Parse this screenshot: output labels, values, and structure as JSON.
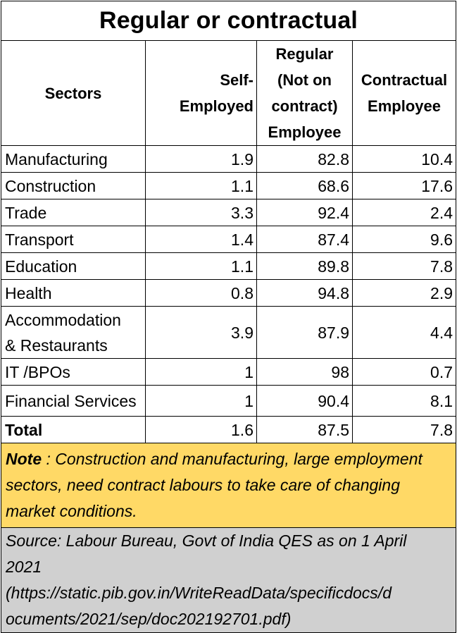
{
  "title": "Regular or contractual",
  "headers": {
    "sectors": "Sectors",
    "self_employed": [
      "Self-",
      "Employed"
    ],
    "regular": [
      "Regular",
      "(Not on",
      "contract)",
      "Employee"
    ],
    "contractual": [
      "Contractual",
      "Employee"
    ]
  },
  "rows": [
    {
      "sector": [
        "Manufacturing"
      ],
      "self_employed": "1.9",
      "regular": "82.8",
      "contractual": "10.4"
    },
    {
      "sector": [
        "Construction"
      ],
      "self_employed": "1.1",
      "regular": "68.6",
      "contractual": "17.6"
    },
    {
      "sector": [
        "Trade"
      ],
      "self_employed": "3.3",
      "regular": "92.4",
      "contractual": "2.4"
    },
    {
      "sector": [
        "Transport"
      ],
      "self_employed": "1.4",
      "regular": "87.4",
      "contractual": "9.6"
    },
    {
      "sector": [
        "Education"
      ],
      "self_employed": "1.1",
      "regular": "89.8",
      "contractual": "7.8"
    },
    {
      "sector": [
        "Health"
      ],
      "self_employed": "0.8",
      "regular": "94.8",
      "contractual": "2.9"
    },
    {
      "sector": [
        "Accommodation",
        "& Restaurants"
      ],
      "self_employed": "3.9",
      "regular": "87.9",
      "contractual": "4.4"
    },
    {
      "sector": [
        "IT /BPOs"
      ],
      "self_employed": "1",
      "regular": "98",
      "contractual": "0.7"
    },
    {
      "sector": [
        "Financial Services"
      ],
      "self_employed": "1",
      "regular": "90.4",
      "contractual": "8.1"
    }
  ],
  "total": {
    "sector": "Total",
    "self_employed": "1.6",
    "regular": "87.5",
    "contractual": "7.8"
  },
  "note": {
    "lead": "Note",
    "text": " : Construction and manufacturing, large employment sectors, need contract labours to take care of changing market conditions."
  },
  "source": {
    "lines": [
      "Source: Labour Bureau, Govt of India QES as on 1 April",
      "2021",
      "(https://static.pib.gov.in/WriteReadData/specificdocs/d",
      "ocuments/2021/sep/doc202192701.pdf)"
    ]
  },
  "colors": {
    "note_background": "#ffd966",
    "source_background": "#d0d0d0"
  }
}
